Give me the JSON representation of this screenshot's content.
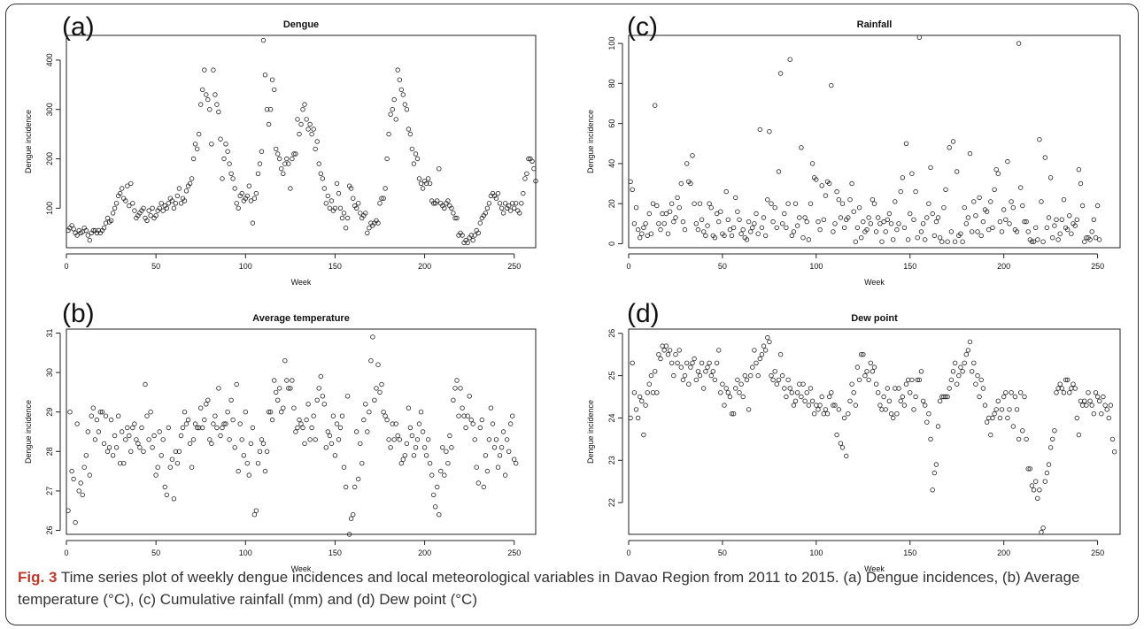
{
  "caption": {
    "fig_label": "Fig. 3",
    "text": " Time series plot of weekly dengue incidences and local meteorological variables in Davao Region from 2011 to 2015. (a) Dengue incidences, (b) Average temperature (°C), (c) Cumulative rainfall (mm) and (d) Dew point (°C)"
  },
  "chart_data": [
    {
      "panel": "(a)",
      "type": "scatter",
      "title": "Dengue",
      "xlabel": "Week",
      "ylabel": "Dengue incidence",
      "xlim": [
        0,
        262
      ],
      "ylim": [
        20,
        450
      ],
      "xticks": [
        0,
        50,
        100,
        150,
        200,
        250
      ],
      "yticks": [
        100,
        200,
        300,
        400
      ],
      "x_start": 1,
      "y": [
        55,
        60,
        65,
        58,
        50,
        45,
        55,
        50,
        52,
        60,
        55,
        45,
        35,
        50,
        55,
        55,
        50,
        55,
        50,
        55,
        60,
        70,
        80,
        72,
        75,
        90,
        100,
        110,
        125,
        130,
        140,
        120,
        115,
        145,
        105,
        150,
        110,
        95,
        80,
        85,
        90,
        95,
        100,
        80,
        75,
        95,
        85,
        100,
        80,
        85,
        95,
        100,
        110,
        95,
        105,
        100,
        110,
        120,
        115,
        100,
        110,
        125,
        140,
        110,
        120,
        115,
        135,
        145,
        150,
        160,
        200,
        230,
        220,
        250,
        310,
        340,
        380,
        330,
        320,
        300,
        230,
        380,
        330,
        310,
        295,
        240,
        160,
        200,
        230,
        215,
        190,
        170,
        160,
        140,
        110,
        100,
        125,
        130,
        115,
        120,
        125,
        145,
        115,
        70,
        120,
        130,
        170,
        190,
        215,
        440,
        370,
        300,
        270,
        300,
        360,
        340,
        220,
        210,
        200,
        180,
        170,
        190,
        200,
        190,
        140,
        200,
        210,
        210,
        280,
        250,
        270,
        300,
        310,
        280,
        260,
        270,
        250,
        260,
        220,
        235,
        190,
        170,
        160,
        140,
        110,
        125,
        100,
        115,
        95,
        100,
        150,
        130,
        100,
        80,
        90,
        60,
        80,
        145,
        140,
        120,
        105,
        100,
        110,
        90,
        80,
        85,
        90,
        50,
        60,
        70,
        65,
        70,
        75,
        70,
        110,
        120,
        120,
        140,
        200,
        250,
        290,
        300,
        320,
        280,
        380,
        360,
        340,
        330,
        310,
        300,
        260,
        250,
        220,
        190,
        210,
        200,
        160,
        150,
        140,
        155,
        150,
        160,
        150,
        115,
        110,
        110,
        115,
        180,
        110,
        105,
        100,
        110,
        115,
        105,
        100,
        90,
        80,
        80,
        45,
        50,
        45,
        30,
        35,
        30,
        40,
        45,
        35,
        45,
        55,
        50,
        70,
        80,
        85,
        90,
        100,
        110,
        125,
        130,
        125,
        120,
        130,
        110,
        100,
        90,
        110,
        100,
        105,
        95,
        110,
        100,
        110,
        95,
        90,
        110,
        130,
        160,
        170,
        200,
        200,
        195,
        180,
        155
      ]
    },
    {
      "panel": "(b)",
      "type": "scatter",
      "title": "Average temperature",
      "xlabel": "Week",
      "ylabel": "Dengue incidence",
      "xlim": [
        0,
        262
      ],
      "ylim": [
        25.9,
        31.1
      ],
      "xticks": [
        0,
        50,
        100,
        150,
        200,
        250
      ],
      "yticks": [
        26,
        27,
        28,
        29,
        30,
        31
      ],
      "x_start": 1,
      "y": [
        26.5,
        29.0,
        27.5,
        27.3,
        26.2,
        28.7,
        27.0,
        27.2,
        26.9,
        27.6,
        27.9,
        28.5,
        27.4,
        28.9,
        29.1,
        28.3,
        28.8,
        28.5,
        29.0,
        29.0,
        28.2,
        28.9,
        28.0,
        28.1,
        28.8,
        27.9,
        28.4,
        28.1,
        28.9,
        27.7,
        28.5,
        27.7,
        28.3,
        28.6,
        28.4,
        28.0,
        28.6,
        28.7,
        28.3,
        28.2,
        28.1,
        28.6,
        28.0,
        29.7,
        28.9,
        28.3,
        29.0,
        28.1,
        28.4,
        27.4,
        27.6,
        28.5,
        27.9,
        28.3,
        27.1,
        26.9,
        28.6,
        27.6,
        27.8,
        26.8,
        28.0,
        27.7,
        28.0,
        28.4,
        28.6,
        29.0,
        28.7,
        28.8,
        28.2,
        27.6,
        28.3,
        28.7,
        28.6,
        28.6,
        29.1,
        28.6,
        28.8,
        29.2,
        29.3,
        28.3,
        28.2,
        28.7,
        28.9,
        28.6,
        29.6,
        28.4,
        28.6,
        28.7,
        28.7,
        29.0,
        28.3,
        29.3,
        28.8,
        28.1,
        29.7,
        27.5,
        28.7,
        28.3,
        27.9,
        29.0,
        27.7,
        27.4,
        28.2,
        28.6,
        26.4,
        26.5,
        27.7,
        28.0,
        28.3,
        28.2,
        27.5,
        28.0,
        29.0,
        29.0,
        28.8,
        29.8,
        29.5,
        29.3,
        29.6,
        29.0,
        29.1,
        30.3,
        29.8,
        29.6,
        29.6,
        29.8,
        29.1,
        28.5,
        28.6,
        28.8,
        28.7,
        28.6,
        28.2,
        28.8,
        29.2,
        28.3,
        28.6,
        28.9,
        28.3,
        29.3,
        29.6,
        29.9,
        29.4,
        29.2,
        28.1,
        28.5,
        28.4,
        28.2,
        28.9,
        27.9,
        28.7,
        28.3,
        28.6,
        28.9,
        27.6,
        27.1,
        29.4,
        25.9,
        26.3,
        26.4,
        27.1,
        28.5,
        27.3,
        28.2,
        27.7,
        28.8,
        29.2,
        28.5,
        29.0,
        30.3,
        30.9,
        29.3,
        29.6,
        30.2,
        29.5,
        29.7,
        29.0,
        28.9,
        28.8,
        28.3,
        28.1,
        28.7,
        28.3,
        28.7,
        28.4,
        28.3,
        27.7,
        27.8,
        27.9,
        28.2,
        29.1,
        28.6,
        28.4,
        27.9,
        28.1,
        28.3,
        28.7,
        29.0,
        28.5,
        28.1,
        27.9,
        28.3,
        27.7,
        27.4,
        26.9,
        26.6,
        27.1,
        26.4,
        27.5,
        28.1,
        27.4,
        28.0,
        27.7,
        28.4,
        28.1,
        29.3,
        29.6,
        29.8,
        28.9,
        29.6,
        29.1,
        28.9,
        28.6,
        28.9,
        29.4,
        28.8,
        28.7,
        28.3,
        27.6,
        27.2,
        28.6,
        28.8,
        27.1,
        27.9,
        27.5,
        28.3,
        29.1,
        28.7,
        28.1,
        28.3,
        27.6,
        27.9,
        28.1,
        28.5,
        27.4,
        28.3,
        28.0,
        28.7,
        28.9,
        27.8,
        27.7
      ]
    },
    {
      "panel": "(c)",
      "type": "scatter",
      "title": "Rainfall",
      "xlabel": "Week",
      "ylabel": "Dengue incidence",
      "xlim": [
        0,
        262
      ],
      "ylim": [
        -2,
        104
      ],
      "xticks": [
        0,
        50,
        100,
        150,
        200,
        250
      ],
      "yticks": [
        0,
        20,
        40,
        60,
        80,
        100
      ],
      "x_start": 1,
      "y": [
        31,
        27,
        10,
        18,
        7,
        3,
        5,
        8,
        10,
        4,
        15,
        5,
        20,
        69,
        19,
        10,
        7,
        15,
        10,
        15,
        5,
        16,
        20,
        11,
        13,
        23,
        18,
        30,
        11,
        7,
        40,
        31,
        30,
        44,
        20,
        10,
        7,
        20,
        12,
        6,
        4,
        9,
        20,
        18,
        4,
        3,
        15,
        11,
        16,
        5,
        4,
        26,
        12,
        7,
        4,
        8,
        23,
        16,
        12,
        5,
        7,
        3,
        2,
        11,
        6,
        8,
        10,
        15,
        5,
        57,
        8,
        13,
        4,
        22,
        56,
        20,
        11,
        18,
        8,
        36,
        85,
        10,
        15,
        8,
        20,
        92,
        4,
        6,
        20,
        9,
        13,
        48,
        3,
        13,
        11,
        2,
        20,
        40,
        33,
        32,
        11,
        7,
        29,
        12,
        24,
        31,
        30,
        79,
        6,
        10,
        26,
        22,
        13,
        20,
        8,
        12,
        13,
        22,
        30,
        16,
        1,
        8,
        18,
        3,
        11,
        6,
        7,
        13,
        10,
        22,
        20,
        6,
        13,
        10,
        1,
        11,
        6,
        12,
        15,
        10,
        2,
        21,
        7,
        10,
        26,
        33,
        8,
        50,
        2,
        15,
        35,
        12,
        26,
        3,
        103,
        6,
        10,
        2,
        13,
        20,
        38,
        15,
        4,
        11,
        13,
        3,
        1,
        18,
        27,
        1,
        48,
        6,
        51,
        1,
        36,
        4,
        5,
        1,
        18,
        10,
        13,
        45,
        6,
        21,
        14,
        6,
        23,
        4,
        11,
        17,
        16,
        7,
        21,
        8,
        27,
        37,
        35,
        11,
        6,
        17,
        12,
        41,
        10,
        21,
        18,
        7,
        6,
        100,
        28,
        19,
        11,
        11,
        6,
        2,
        1,
        1,
        8,
        2,
        52,
        21,
        1,
        43,
        8,
        13,
        33,
        3,
        9,
        12,
        2,
        5,
        12,
        22,
        8,
        7,
        14,
        5,
        10,
        9,
        12,
        37,
        30,
        19,
        1,
        3,
        3,
        2,
        6,
        12,
        3,
        19,
        2
      ]
    },
    {
      "panel": "(d)",
      "type": "scatter",
      "title": "Dew point",
      "xlabel": "Week",
      "ylabel": "Dengue incidence",
      "xlim": [
        0,
        262
      ],
      "ylim": [
        21.25,
        26.1
      ],
      "xticks": [
        0,
        50,
        100,
        150,
        200,
        250
      ],
      "yticks": [
        22,
        23,
        24,
        25,
        26
      ],
      "x_start": 1,
      "y": [
        24.0,
        25.3,
        24.6,
        24.2,
        24.0,
        24.5,
        24.4,
        23.6,
        24.3,
        24.6,
        24.8,
        25.0,
        24.6,
        25.1,
        24.6,
        25.5,
        25.4,
        25.7,
        25.6,
        25.7,
        25.5,
        25.6,
        25.3,
        25.0,
        25.5,
        25.3,
        25.6,
        25.2,
        24.9,
        25.0,
        25.3,
        24.8,
        25.2,
        25.3,
        25.4,
        24.9,
        25.1,
        25.0,
        25.3,
        24.7,
        25.1,
        25.2,
        25.3,
        25.0,
        25.1,
        24.9,
        25.3,
        25.6,
        24.6,
        24.8,
        24.3,
        24.7,
        24.6,
        24.5,
        24.1,
        24.1,
        24.7,
        24.9,
        24.6,
        24.8,
        24.5,
        25.0,
        24.9,
        24.2,
        25.0,
        25.2,
        25.6,
        25.3,
        25.0,
        25.4,
        25.5,
        25.7,
        25.6,
        25.9,
        25.8,
        25.0,
        24.9,
        25.1,
        24.8,
        24.9,
        25.5,
        25.0,
        24.7,
        24.5,
        24.9,
        24.7,
        24.6,
        24.3,
        24.4,
        24.6,
        24.8,
        24.5,
        24.8,
        24.4,
        24.6,
        24.3,
        24.7,
        24.4,
        24.1,
        24.3,
        24.2,
        24.3,
        24.5,
        24.1,
        24.2,
        24.1,
        24.5,
        24.6,
        24.3,
        24.3,
        23.6,
        24.2,
        23.4,
        23.3,
        24.0,
        23.1,
        24.1,
        24.4,
        24.8,
        24.6,
        24.3,
        25.2,
        24.9,
        25.5,
        25.5,
        25.0,
        25.1,
        24.9,
        25.3,
        25.1,
        25.2,
        24.8,
        24.6,
        24.3,
        24.2,
        24.5,
        24.2,
        24.7,
        24.4,
        24.1,
        24.0,
        24.7,
        24.1,
        24.7,
        24.4,
        24.5,
        24.3,
        24.8,
        24.9,
        24.6,
        24.9,
        24.2,
        24.5,
        24.9,
        24.9,
        25.1,
        24.4,
        24.3,
        23.9,
        24.1,
        23.5,
        22.3,
        22.7,
        22.9,
        23.8,
        24.4,
        24.5,
        24.5,
        24.5,
        24.5,
        24.7,
        24.9,
        25.1,
        25.3,
        24.8,
        25.0,
        25.2,
        25.1,
        25.3,
        25.5,
        25.6,
        25.8,
        25.1,
        25.3,
        24.8,
        25.0,
        24.5,
        24.9,
        24.7,
        24.3,
        23.9,
        24.0,
        23.6,
        24.0,
        24.1,
        24.2,
        24.4,
        24.0,
        24.2,
        24.5,
        24.6,
        24.0,
        24.2,
        24.6,
        23.8,
        24.5,
        24.2,
        23.5,
        24.6,
        23.7,
        24.5,
        23.5,
        22.8,
        22.8,
        22.4,
        22.3,
        22.5,
        22.1,
        22.3,
        21.3,
        21.4,
        22.5,
        22.7,
        22.9,
        23.3,
        23.5,
        23.7,
        24.6,
        24.7,
        24.8,
        24.7,
        24.6,
        24.9,
        24.9,
        24.6,
        24.7,
        24.8,
        24.7,
        24.0,
        23.6,
        24.4,
        24.3,
        24.4,
        24.3,
        24.6,
        24.4,
        24.3,
        24.1,
        24.6,
        24.5,
        24.4,
        24.1,
        24.5,
        24.3,
        24.2,
        24.0,
        24.3,
        23.5,
        23.2
      ]
    }
  ]
}
